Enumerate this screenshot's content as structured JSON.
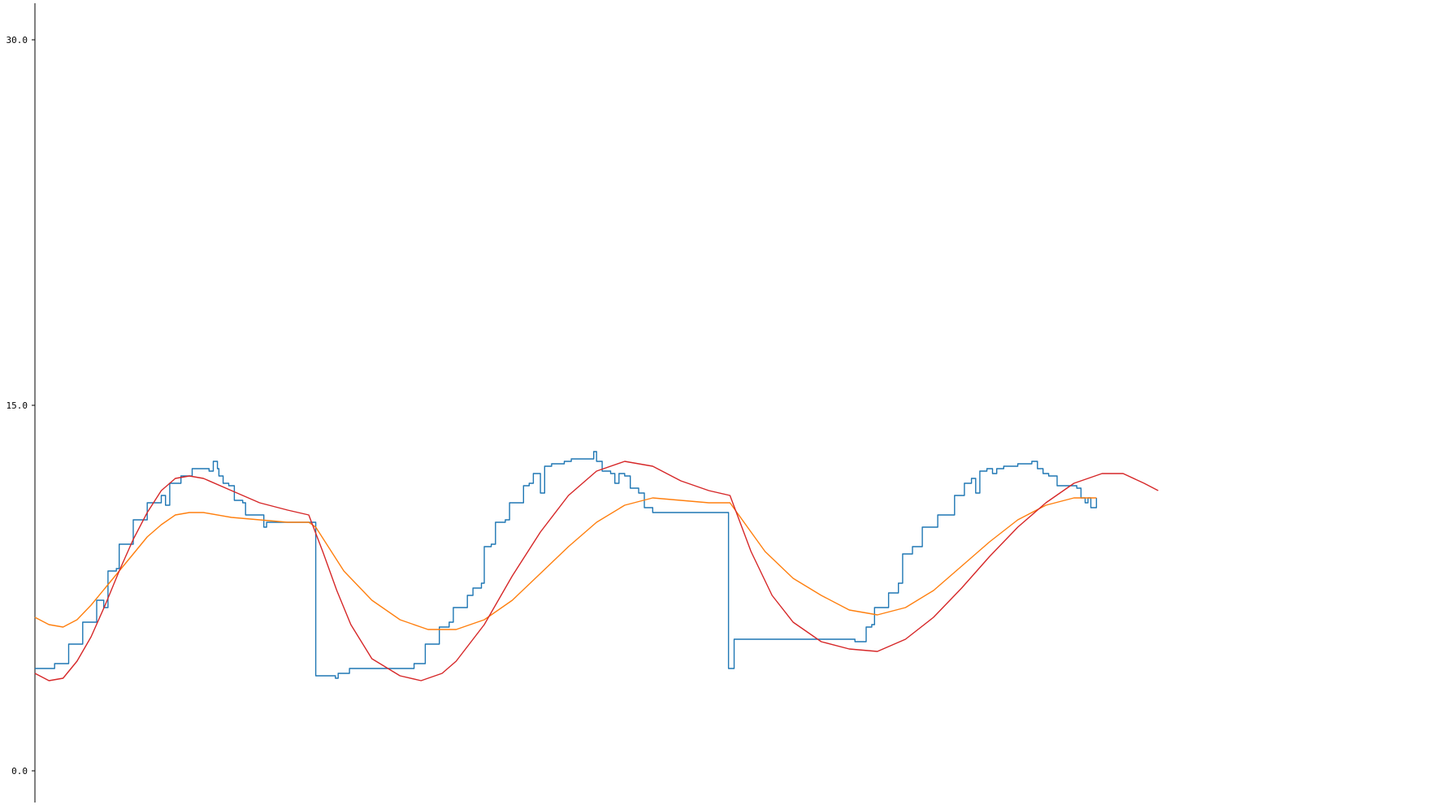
{
  "chart_data": {
    "type": "line",
    "title": "",
    "xlabel": "",
    "ylabel": "",
    "ylim": [
      -1.0,
      31.5
    ],
    "xlim": [
      0,
      1000
    ],
    "grid": false,
    "legend": "none",
    "y_ticks": [
      {
        "value": 0.0,
        "label": "0.0"
      },
      {
        "value": 15.0,
        "label": "15.0"
      },
      {
        "value": 30.0,
        "label": "30.0"
      }
    ],
    "series": [
      {
        "color": "#1f77b4",
        "step": true,
        "points": [
          [
            0,
            4.2
          ],
          [
            10,
            4.2
          ],
          [
            14,
            4.4
          ],
          [
            22,
            4.4
          ],
          [
            24,
            5.2
          ],
          [
            32,
            5.2
          ],
          [
            34,
            6.1
          ],
          [
            42,
            6.1
          ],
          [
            44,
            7.0
          ],
          [
            47,
            7.0
          ],
          [
            49,
            6.7
          ],
          [
            52,
            8.2
          ],
          [
            58,
            8.3
          ],
          [
            60,
            9.3
          ],
          [
            68,
            9.3
          ],
          [
            70,
            10.3
          ],
          [
            78,
            10.3
          ],
          [
            80,
            11.0
          ],
          [
            88,
            11.0
          ],
          [
            90,
            11.3
          ],
          [
            93,
            10.9
          ],
          [
            96,
            11.8
          ],
          [
            101,
            11.8
          ],
          [
            104,
            12.1
          ],
          [
            110,
            12.1
          ],
          [
            112,
            12.4
          ],
          [
            118,
            12.4
          ],
          [
            124,
            12.3
          ],
          [
            127,
            12.7
          ],
          [
            130,
            12.4
          ],
          [
            131,
            12.1
          ],
          [
            134,
            11.8
          ],
          [
            138,
            11.7
          ],
          [
            142,
            11.1
          ],
          [
            148,
            11.0
          ],
          [
            150,
            10.5
          ],
          [
            160,
            10.5
          ],
          [
            163,
            10.0
          ],
          [
            165,
            10.2
          ],
          [
            200,
            10.2
          ],
          [
            200,
            3.9
          ],
          [
            208,
            3.9
          ],
          [
            214,
            3.8
          ],
          [
            216,
            4.0
          ],
          [
            220,
            4.0
          ],
          [
            224,
            4.2
          ],
          [
            240,
            4.2
          ],
          [
            265,
            4.2
          ],
          [
            270,
            4.4
          ],
          [
            275,
            4.4
          ],
          [
            278,
            5.2
          ],
          [
            285,
            5.2
          ],
          [
            288,
            5.9
          ],
          [
            295,
            6.1
          ],
          [
            298,
            6.7
          ],
          [
            305,
            6.7
          ],
          [
            308,
            7.2
          ],
          [
            312,
            7.5
          ],
          [
            318,
            7.7
          ],
          [
            320,
            9.2
          ],
          [
            325,
            9.3
          ],
          [
            328,
            10.2
          ],
          [
            335,
            10.3
          ],
          [
            338,
            11.0
          ],
          [
            345,
            11.0
          ],
          [
            348,
            11.7
          ],
          [
            352,
            11.8
          ],
          [
            355,
            12.2
          ],
          [
            360,
            11.4
          ],
          [
            363,
            12.5
          ],
          [
            368,
            12.6
          ],
          [
            374,
            12.6
          ],
          [
            377,
            12.7
          ],
          [
            382,
            12.8
          ],
          [
            388,
            12.8
          ],
          [
            395,
            12.8
          ],
          [
            398,
            13.1
          ],
          [
            400,
            12.7
          ],
          [
            404,
            12.3
          ],
          [
            410,
            12.2
          ],
          [
            413,
            11.8
          ],
          [
            416,
            12.2
          ],
          [
            420,
            12.1
          ],
          [
            424,
            11.6
          ],
          [
            430,
            11.4
          ],
          [
            434,
            10.8
          ],
          [
            440,
            10.6
          ],
          [
            450,
            10.6
          ],
          [
            470,
            10.6
          ],
          [
            494,
            10.6
          ],
          [
            494,
            4.2
          ],
          [
            498,
            5.4
          ],
          [
            510,
            5.4
          ],
          [
            560,
            5.4
          ],
          [
            580,
            5.4
          ],
          [
            584,
            5.3
          ],
          [
            590,
            5.3
          ],
          [
            592,
            5.9
          ],
          [
            596,
            6.0
          ],
          [
            598,
            6.7
          ],
          [
            605,
            6.7
          ],
          [
            608,
            7.3
          ],
          [
            612,
            7.3
          ],
          [
            615,
            7.7
          ],
          [
            618,
            8.9
          ],
          [
            622,
            8.9
          ],
          [
            625,
            9.2
          ],
          [
            628,
            9.2
          ],
          [
            632,
            10.0
          ],
          [
            640,
            10.0
          ],
          [
            643,
            10.5
          ],
          [
            650,
            10.5
          ],
          [
            655,
            11.3
          ],
          [
            660,
            11.3
          ],
          [
            662,
            11.8
          ],
          [
            667,
            12.0
          ],
          [
            670,
            11.4
          ],
          [
            673,
            12.3
          ],
          [
            678,
            12.4
          ],
          [
            682,
            12.2
          ],
          [
            685,
            12.4
          ],
          [
            690,
            12.5
          ],
          [
            700,
            12.6
          ],
          [
            705,
            12.6
          ],
          [
            710,
            12.7
          ],
          [
            714,
            12.4
          ],
          [
            718,
            12.2
          ],
          [
            722,
            12.1
          ],
          [
            728,
            11.7
          ],
          [
            735,
            11.7
          ],
          [
            742,
            11.6
          ],
          [
            745,
            11.2
          ],
          [
            748,
            11.0
          ],
          [
            750,
            11.2
          ],
          [
            752,
            10.8
          ],
          [
            756,
            11.2
          ]
        ]
      },
      {
        "color": "#ff7f0e",
        "points": [
          [
            0,
            6.3
          ],
          [
            10,
            6.0
          ],
          [
            20,
            5.9
          ],
          [
            30,
            6.2
          ],
          [
            40,
            6.8
          ],
          [
            50,
            7.5
          ],
          [
            60,
            8.2
          ],
          [
            70,
            8.9
          ],
          [
            80,
            9.6
          ],
          [
            90,
            10.1
          ],
          [
            100,
            10.5
          ],
          [
            110,
            10.6
          ],
          [
            120,
            10.6
          ],
          [
            140,
            10.4
          ],
          [
            160,
            10.3
          ],
          [
            180,
            10.2
          ],
          [
            195,
            10.2
          ],
          [
            200,
            10.0
          ],
          [
            210,
            9.1
          ],
          [
            220,
            8.2
          ],
          [
            240,
            7.0
          ],
          [
            260,
            6.2
          ],
          [
            280,
            5.8
          ],
          [
            300,
            5.8
          ],
          [
            320,
            6.2
          ],
          [
            340,
            7.0
          ],
          [
            360,
            8.1
          ],
          [
            380,
            9.2
          ],
          [
            400,
            10.2
          ],
          [
            420,
            10.9
          ],
          [
            440,
            11.2
          ],
          [
            460,
            11.1
          ],
          [
            480,
            11.0
          ],
          [
            495,
            11.0
          ],
          [
            500,
            10.6
          ],
          [
            520,
            9.0
          ],
          [
            540,
            7.9
          ],
          [
            560,
            7.2
          ],
          [
            580,
            6.6
          ],
          [
            600,
            6.4
          ],
          [
            620,
            6.7
          ],
          [
            640,
            7.4
          ],
          [
            660,
            8.4
          ],
          [
            680,
            9.4
          ],
          [
            700,
            10.3
          ],
          [
            720,
            10.9
          ],
          [
            740,
            11.2
          ],
          [
            756,
            11.2
          ]
        ]
      },
      {
        "color": "#d62728",
        "points": [
          [
            0,
            4.0
          ],
          [
            10,
            3.7
          ],
          [
            20,
            3.8
          ],
          [
            30,
            4.5
          ],
          [
            40,
            5.5
          ],
          [
            50,
            6.8
          ],
          [
            60,
            8.2
          ],
          [
            70,
            9.5
          ],
          [
            80,
            10.6
          ],
          [
            90,
            11.5
          ],
          [
            100,
            12.0
          ],
          [
            110,
            12.1
          ],
          [
            120,
            12.0
          ],
          [
            140,
            11.5
          ],
          [
            160,
            11.0
          ],
          [
            180,
            10.7
          ],
          [
            195,
            10.5
          ],
          [
            205,
            9.0
          ],
          [
            215,
            7.4
          ],
          [
            225,
            6.0
          ],
          [
            240,
            4.6
          ],
          [
            260,
            3.9
          ],
          [
            275,
            3.7
          ],
          [
            290,
            4.0
          ],
          [
            300,
            4.5
          ],
          [
            320,
            6.0
          ],
          [
            340,
            8.0
          ],
          [
            360,
            9.8
          ],
          [
            380,
            11.3
          ],
          [
            400,
            12.3
          ],
          [
            420,
            12.7
          ],
          [
            440,
            12.5
          ],
          [
            460,
            11.9
          ],
          [
            480,
            11.5
          ],
          [
            495,
            11.3
          ],
          [
            510,
            9.0
          ],
          [
            525,
            7.2
          ],
          [
            540,
            6.1
          ],
          [
            560,
            5.3
          ],
          [
            580,
            5.0
          ],
          [
            600,
            4.9
          ],
          [
            620,
            5.4
          ],
          [
            640,
            6.3
          ],
          [
            660,
            7.5
          ],
          [
            680,
            8.8
          ],
          [
            700,
            10.0
          ],
          [
            720,
            11.0
          ],
          [
            740,
            11.8
          ],
          [
            760,
            12.2
          ],
          [
            775,
            12.2
          ],
          [
            790,
            11.8
          ],
          [
            800,
            11.5
          ]
        ]
      }
    ]
  }
}
